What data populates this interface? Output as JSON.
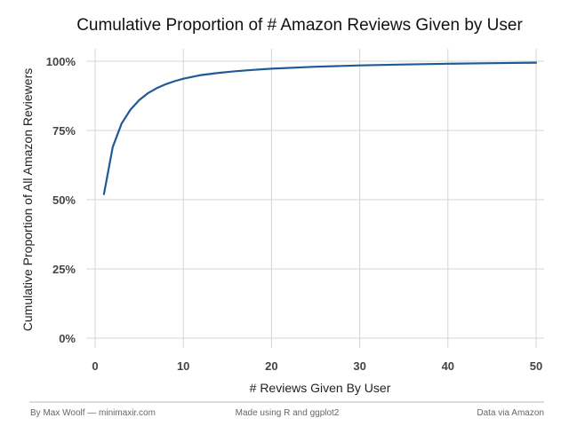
{
  "chart_data": {
    "type": "line",
    "title": "Cumulative Proportion of # Amazon Reviews Given by User",
    "xlabel": "# Reviews Given By User",
    "ylabel": "Cumulative Proportion of All Amazon Reviewers",
    "xlim": [
      0,
      50
    ],
    "ylim": [
      0,
      1
    ],
    "x_ticks": [
      0,
      10,
      20,
      30,
      40,
      50
    ],
    "x_tick_labels": [
      "0",
      "10",
      "20",
      "30",
      "40",
      "50"
    ],
    "y_ticks": [
      0,
      0.25,
      0.5,
      0.75,
      1.0
    ],
    "y_tick_labels": [
      "0%",
      "25%",
      "50%",
      "75%",
      "100%"
    ],
    "grid": true,
    "legend": "none",
    "line_color": "#1f5a96",
    "series": [
      {
        "x": [
          1,
          2,
          3,
          4,
          5,
          6,
          7,
          8,
          9,
          10,
          12,
          14,
          16,
          18,
          20,
          25,
          30,
          35,
          40,
          45,
          50
        ],
        "values": [
          0.52,
          0.69,
          0.775,
          0.825,
          0.86,
          0.885,
          0.903,
          0.917,
          0.928,
          0.937,
          0.95,
          0.958,
          0.964,
          0.969,
          0.973,
          0.98,
          0.985,
          0.988,
          0.991,
          0.993,
          0.995
        ]
      }
    ]
  },
  "footer": {
    "left": "By Max Woolf — minimaxir.com",
    "center": "Made using R and ggplot2",
    "right": "Data via Amazon"
  }
}
